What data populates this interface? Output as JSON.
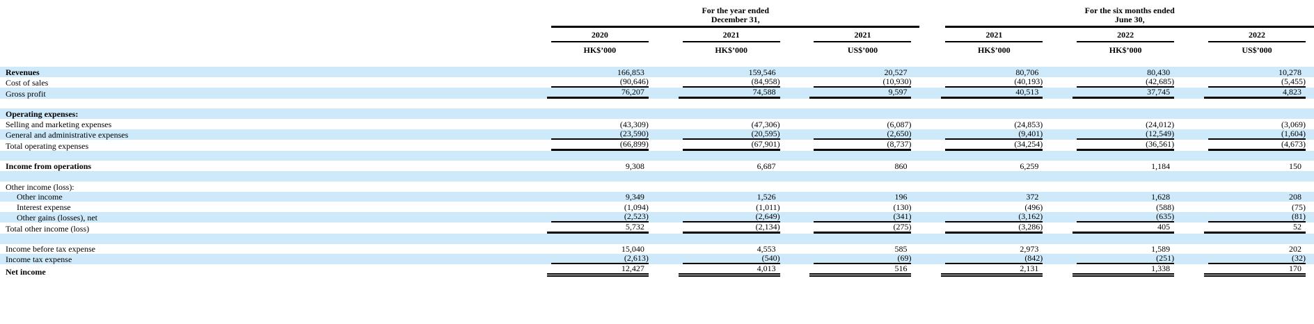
{
  "header": {
    "groups": [
      {
        "line1": "For the year ended",
        "line2": "December 31,",
        "columns": [
          {
            "year": "2020",
            "unit": "HK$’000"
          },
          {
            "year": "2021",
            "unit": "HK$’000"
          },
          {
            "year": "2021",
            "unit": "US$’000"
          }
        ]
      },
      {
        "line1": "For the six months ended",
        "line2": "June 30,",
        "columns": [
          {
            "year": "2021",
            "unit": "HK$’000"
          },
          {
            "year": "2022",
            "unit": "HK$’000"
          },
          {
            "year": "2022",
            "unit": "US$’000"
          }
        ]
      }
    ]
  },
  "colors": {
    "row_highlight": "#cde9fa",
    "rule": "#000000",
    "text": "#000000"
  },
  "rows": [
    {
      "label": "Revenues",
      "bold": true,
      "values": [
        "166,853",
        "159,546",
        "20,527",
        "80,706",
        "80,430",
        "10,278"
      ],
      "line_below": "none"
    },
    {
      "label": "Cost of sales",
      "values": [
        "(90,646)",
        "(84,958)",
        "(10,930)",
        "(40,193)",
        "(42,685)",
        "(5,455)"
      ],
      "line_below": "single"
    },
    {
      "label": "Gross profit",
      "values": [
        "76,207",
        "74,588",
        "9,597",
        "40,513",
        "37,745",
        "4,823"
      ],
      "line_below": "heavy"
    },
    {
      "label": "",
      "blank": true
    },
    {
      "label": "Operating expenses:",
      "bold": true
    },
    {
      "label": "Selling and marketing expenses",
      "values": [
        "(43,309)",
        "(47,306)",
        "(6,087)",
        "(24,853)",
        "(24,012)",
        "(3,069)"
      ],
      "line_below": "none"
    },
    {
      "label": "General and administrative expenses",
      "values": [
        "(23,590)",
        "(20,595)",
        "(2,650)",
        "(9,401)",
        "(12,549)",
        "(1,604)"
      ],
      "line_below": "single"
    },
    {
      "label": "Total operating expenses",
      "values": [
        "(66,899)",
        "(67,901)",
        "(8,737)",
        "(34,254)",
        "(36,561)",
        "(4,673)"
      ],
      "line_below": "heavy"
    },
    {
      "label": "",
      "blank": true
    },
    {
      "label": "Income from operations",
      "bold": true,
      "values": [
        "9,308",
        "6,687",
        "860",
        "6,259",
        "1,184",
        "150"
      ],
      "line_below": "none"
    },
    {
      "label": "",
      "blank": true
    },
    {
      "label": "Other income (loss):"
    },
    {
      "label": "Other income",
      "indent": true,
      "values": [
        "9,349",
        "1,526",
        "196",
        "372",
        "1,628",
        "208"
      ],
      "line_below": "none"
    },
    {
      "label": "Interest expense",
      "indent": true,
      "values": [
        "(1,094)",
        "(1,011)",
        "(130)",
        "(496)",
        "(588)",
        "(75)"
      ],
      "line_below": "none"
    },
    {
      "label": "Other gains (losses), net",
      "indent": true,
      "values": [
        "(2,523)",
        "(2,649)",
        "(341)",
        "(3,162)",
        "(635)",
        "(81)"
      ],
      "line_below": "single"
    },
    {
      "label": "Total other income (loss)",
      "values": [
        "5,732",
        "(2,134)",
        "(275)",
        "(3,286)",
        "405",
        "52"
      ],
      "line_below": "heavy"
    },
    {
      "label": "",
      "blank": true
    },
    {
      "label": "Income before tax expense",
      "values": [
        "15,040",
        "4,553",
        "585",
        "2,973",
        "1,589",
        "202"
      ],
      "line_below": "none"
    },
    {
      "label": "Income tax expense",
      "values": [
        "(2,613)",
        "(540)",
        "(69)",
        "(842)",
        "(251)",
        "(32)"
      ],
      "line_below": "single"
    },
    {
      "label": "Net income",
      "bold": true,
      "values": [
        "12,427",
        "4,013",
        "516",
        "2,131",
        "1,338",
        "170"
      ],
      "line_below": "double"
    }
  ]
}
